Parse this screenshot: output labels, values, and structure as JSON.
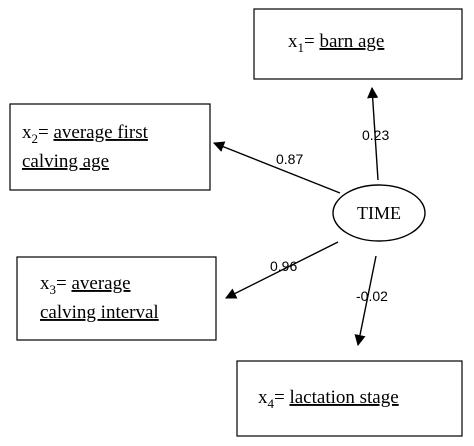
{
  "center": {
    "label": "TIME"
  },
  "nodes": [
    {
      "id": "x1",
      "var": "x",
      "sub": "1",
      "eq": "= ",
      "lines": [
        "barn age"
      ]
    },
    {
      "id": "x2",
      "var": "x",
      "sub": "2",
      "eq": "= ",
      "lines": [
        "average first",
        "calving age"
      ]
    },
    {
      "id": "x3",
      "var": "x",
      "sub": "3",
      "eq": "= ",
      "lines": [
        "average",
        "calving interval"
      ]
    },
    {
      "id": "x4",
      "var": "x",
      "sub": "4",
      "eq": "= ",
      "lines": [
        "lactation stage"
      ]
    }
  ],
  "edges": [
    {
      "to": "x1",
      "weight": "0.23"
    },
    {
      "to": "x2",
      "weight": "0.87"
    },
    {
      "to": "x3",
      "weight": "0.96"
    },
    {
      "to": "x4",
      "weight": "-0.02"
    }
  ]
}
